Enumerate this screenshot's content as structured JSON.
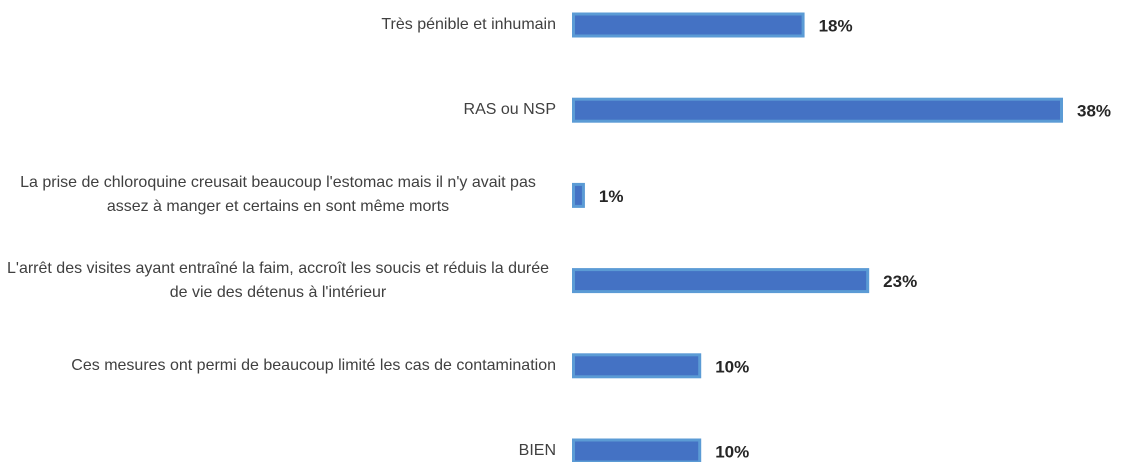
{
  "chart_data": {
    "type": "bar",
    "orientation": "horizontal",
    "categories": [
      "Très pénible et inhumain",
      "RAS ou NSP",
      "La prise de chloroquine creusait beaucoup l'estomac mais il n'y avait pas assez à manger et certains en sont même morts",
      "L'arrêt des visites ayant entraîné la faim, accroît les soucis et réduis la durée de vie des détenus à l'intérieur",
      "Ces mesures ont permi de beaucoup limité les cas de contamination",
      "BIEN"
    ],
    "values": [
      18,
      38,
      1,
      23,
      10,
      10
    ],
    "value_labels": [
      "18%",
      "38%",
      "1%",
      "23%",
      "10%",
      "10%"
    ],
    "color": "#4472c4"
  }
}
